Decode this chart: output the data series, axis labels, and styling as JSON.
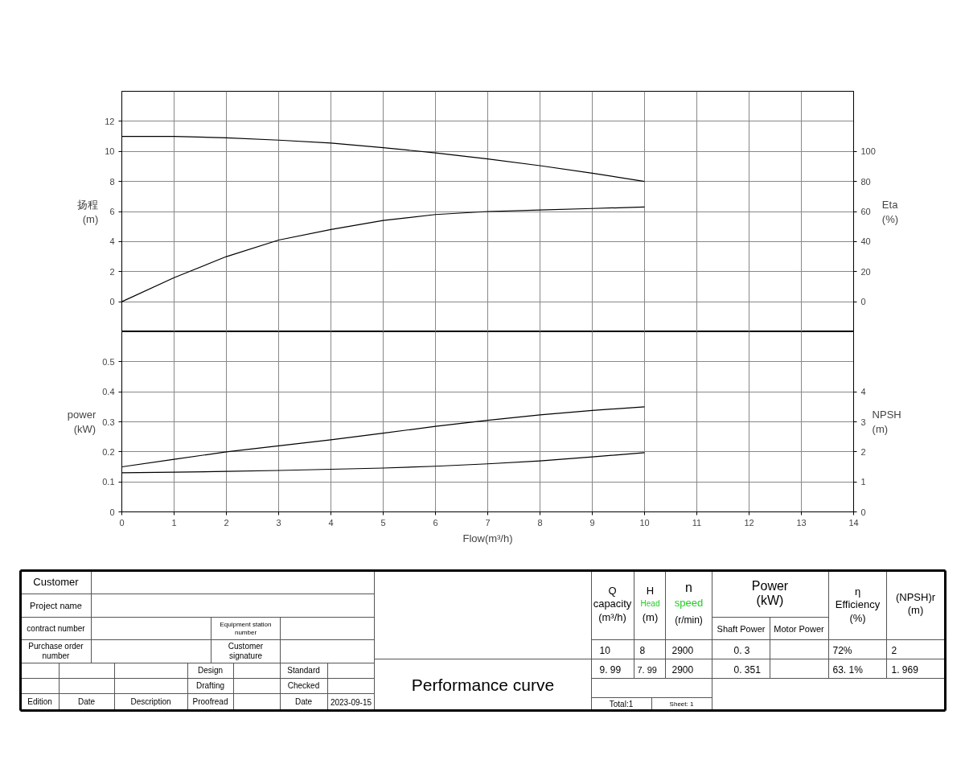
{
  "chart_data": [
    {
      "type": "line",
      "ylabel": "扬程 (m)",
      "y2label": "Eta (%)",
      "x": [
        0,
        1,
        2,
        3,
        4,
        5,
        6,
        7,
        8,
        9,
        10
      ],
      "xlim": [
        0,
        14
      ],
      "xticks": [
        0,
        1,
        2,
        3,
        4,
        5,
        6,
        7,
        8,
        9,
        10,
        11,
        12,
        13,
        14
      ],
      "ylim": [
        -2,
        14
      ],
      "yticks": [
        0,
        2,
        4,
        6,
        8,
        10,
        12
      ],
      "y2lim": [
        -20,
        140
      ],
      "y2ticks": [
        0,
        20,
        40,
        60,
        80,
        100
      ],
      "grid": true,
      "tick_labels": "y",
      "series": [
        {
          "color": "#000000",
          "values": [
            11.0,
            11.0,
            10.9,
            10.75,
            10.55,
            10.25,
            9.9,
            9.5,
            9.05,
            8.55,
            8.0
          ]
        },
        {
          "color": "#000000",
          "axis": "y2",
          "values": [
            0,
            16,
            30,
            41,
            48,
            54,
            58,
            60,
            61,
            62,
            63
          ]
        }
      ]
    },
    {
      "type": "line",
      "xlabel": "Flow(m³/h)",
      "ylabel": "power (kW)",
      "y2label": "NPSH (m)",
      "x": [
        0,
        1,
        2,
        3,
        4,
        5,
        6,
        7,
        8,
        9,
        10
      ],
      "xlim": [
        0,
        14
      ],
      "xticks": [
        0,
        1,
        2,
        3,
        4,
        5,
        6,
        7,
        8,
        9,
        10,
        11,
        12,
        13,
        14
      ],
      "ylim": [
        0,
        0.6
      ],
      "yticks": [
        0,
        0.1,
        0.2,
        0.3,
        0.4,
        0.5
      ],
      "y2lim": [
        0,
        6
      ],
      "y2ticks": [
        0,
        1,
        2,
        3,
        4
      ],
      "grid": true,
      "series": [
        {
          "color": "#000000",
          "values": [
            0.15,
            0.175,
            0.2,
            0.22,
            0.24,
            0.262,
            0.285,
            0.305,
            0.323,
            0.338,
            0.35
          ]
        },
        {
          "color": "#000000",
          "axis": "y2",
          "values": [
            1.3,
            1.32,
            1.35,
            1.38,
            1.42,
            1.46,
            1.52,
            1.6,
            1.7,
            1.83,
            1.97
          ]
        }
      ]
    },
    {
      "type": "other",
      "annotations": [
        "Customer",
        "Project name",
        "contract number",
        "Equipment station number",
        "Purchase order number",
        "Customer signature",
        "Design",
        "Standard",
        "Drafting",
        "Checked",
        "Edition",
        "Date",
        "Description",
        "Proofread",
        "Date",
        "2023-09-15",
        "Performance curve",
        "Q capacity (m³/h)",
        "H",
        "Head",
        "(m)",
        "n",
        "speed",
        "(r/min)",
        "Power (kW)",
        "Shaft Power",
        "Motor Power",
        "η Efficiency (%)",
        "(NPSH)r (m)",
        "10",
        "8",
        "2900",
        "0. 3",
        "72%",
        "2",
        "9. 99",
        "7. 99",
        "2900",
        "0. 351",
        "63. 1%",
        "1. 969",
        "Total:1",
        "Sheet: 1"
      ]
    }
  ]
}
